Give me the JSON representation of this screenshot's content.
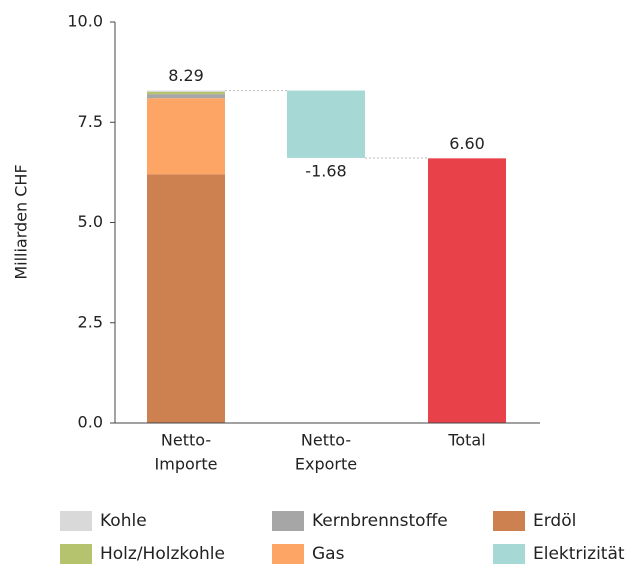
{
  "chart_data": {
    "type": "waterfall",
    "y_label": "Milliarden CHF",
    "categories": [
      [
        "Netto-",
        "Importe"
      ],
      [
        "Netto-",
        "Exporte"
      ],
      [
        "Total"
      ]
    ],
    "ylim": [
      0,
      10
    ],
    "yticks": [
      {
        "value": 0,
        "label": "0.0"
      },
      2.5,
      {
        "value": 5,
        "label": "5.0"
      },
      7.5,
      {
        "value": 10,
        "label": "10.0"
      }
    ],
    "series": [
      {
        "name": "Kohle",
        "color": "#d9d9d9",
        "values": [
          0.03,
          null,
          null
        ]
      },
      {
        "name": "Kernbrennstoffe",
        "color": "#a6a6a6",
        "values": [
          0.1,
          null,
          null
        ]
      },
      {
        "name": "Erdöl",
        "color": "#cd8050",
        "values": [
          6.2,
          null,
          null
        ]
      },
      {
        "name": "Holz/Holzkohle",
        "color": "#b5c26e",
        "values": [
          0.06,
          null,
          null
        ]
      },
      {
        "name": "Gas",
        "color": "#fca565",
        "values": [
          1.9,
          null,
          null
        ]
      },
      {
        "name": "Elektrizität",
        "color": "#a6d9d6",
        "values": [
          null,
          -1.68,
          null
        ]
      }
    ],
    "totals": {
      "values": [
        8.29,
        -1.68,
        6.6
      ],
      "value_labels": [
        "8.29",
        "-1.68",
        "6.60"
      ],
      "color": "#e8414a"
    }
  }
}
